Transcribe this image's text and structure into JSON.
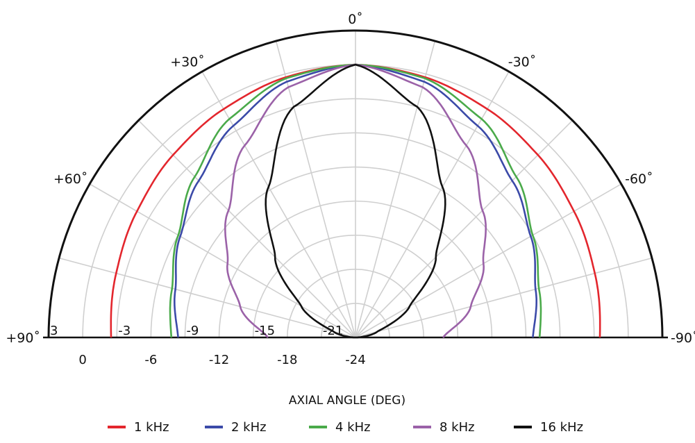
{
  "chart_data": {
    "type": "polar",
    "subtype": "half-polar directivity",
    "xlabel": "AXIAL ANGLE (DEG)",
    "angle_range_deg": [
      -90,
      90
    ],
    "angle_ticks": [
      {
        "deg": 0,
        "label": "0˚"
      },
      {
        "deg": -30,
        "label": "+30˚"
      },
      {
        "deg": 30,
        "label": "-30˚"
      },
      {
        "deg": -60,
        "label": "+60˚"
      },
      {
        "deg": 60,
        "label": "-60˚"
      },
      {
        "deg": -90,
        "label": "+90˚"
      },
      {
        "deg": 90,
        "label": "-90˚"
      }
    ],
    "radial_unit": "dB",
    "radial_range": [
      -24,
      3
    ],
    "radial_ticks_inner": [
      "3",
      "-3",
      "-9",
      "-15",
      "-21"
    ],
    "radial_ticks_below": [
      "0",
      "-6",
      "-12",
      "-18",
      "-24"
    ],
    "grid": true,
    "legend_position": "bottom",
    "colors": {
      "1 kHz": "#e3262d",
      "2 kHz": "#3b4aa8",
      "4 kHz": "#4aaa4a",
      "8 kHz": "#9b62a8",
      "16 kHz": "#111111"
    },
    "angles": [
      0,
      15,
      30,
      45,
      60,
      75,
      90
    ],
    "series": [
      {
        "name": "1 kHz",
        "color": "#e3262d",
        "values": [
          0,
          -0.3,
          -0.8,
          -1.3,
          -1.8,
          -2.2,
          -2.5
        ]
      },
      {
        "name": "2 kHz",
        "color": "#3b4aa8",
        "values": [
          0,
          -0.7,
          -2.5,
          -4.5,
          -6.2,
          -7.6,
          -8.4
        ]
      },
      {
        "name": "4 kHz",
        "color": "#4aaa4a",
        "values": [
          0,
          -0.4,
          -1.8,
          -4.0,
          -6.0,
          -7.3,
          -7.8
        ]
      },
      {
        "name": "8 kHz",
        "color": "#9b62a8",
        "values": [
          0,
          -1.2,
          -4.5,
          -8.2,
          -11.0,
          -13.5,
          -16.3
        ]
      },
      {
        "name": "16 kHz",
        "color": "#111111",
        "values": [
          0,
          -3.0,
          -8.7,
          -14.0,
          -18.5,
          -22.0,
          -24.0
        ]
      }
    ]
  }
}
